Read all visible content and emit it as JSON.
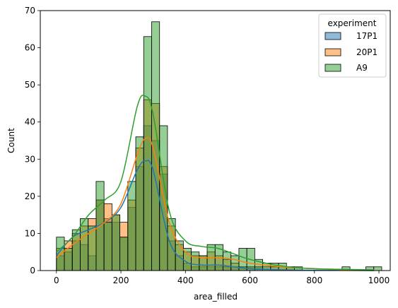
{
  "chart_data": {
    "type": "histogram",
    "xlabel": "area_filled",
    "ylabel": "Count",
    "xlim": [
      -50,
      1035
    ],
    "ylim": [
      0,
      70
    ],
    "xticks": [
      0,
      200,
      400,
      600,
      800,
      1000
    ],
    "yticks": [
      0,
      10,
      20,
      30,
      40,
      50,
      60,
      70
    ],
    "bin_start": 0,
    "bin_width": 24.6,
    "legend": {
      "title": "experiment",
      "position": "top-right"
    },
    "series": [
      {
        "name": "17P1",
        "color": "#1f77b4",
        "counts": [
          4,
          5,
          8,
          7,
          4,
          19,
          14,
          13,
          9,
          17,
          28,
          39,
          35,
          26,
          8,
          4,
          2,
          1,
          1,
          1,
          1,
          1,
          1,
          1,
          1,
          1,
          0,
          0,
          0,
          0,
          0,
          0,
          0,
          0,
          0,
          0,
          0,
          0,
          0,
          0,
          0
        ],
        "kde": [
          [
            0,
            4
          ],
          [
            50,
            9
          ],
          [
            100,
            11
          ],
          [
            150,
            13
          ],
          [
            200,
            17
          ],
          [
            250,
            27
          ],
          [
            275,
            29.5
          ],
          [
            300,
            27
          ],
          [
            350,
            8
          ],
          [
            400,
            2.5
          ],
          [
            450,
            1.5
          ],
          [
            500,
            1.5
          ],
          [
            550,
            1
          ],
          [
            600,
            0.5
          ],
          [
            700,
            0.2
          ],
          [
            800,
            0.1
          ],
          [
            985,
            0
          ]
        ]
      },
      {
        "name": "20P1",
        "color": "#ff7f0e",
        "counts": [
          6,
          8,
          10,
          12,
          14,
          19,
          18,
          15,
          13,
          19,
          33,
          46,
          45,
          28,
          12,
          7,
          5,
          4,
          4,
          5,
          4,
          3,
          2,
          1,
          1,
          1,
          1,
          1,
          1,
          1,
          0,
          0,
          0,
          0,
          0,
          0,
          0,
          0,
          0,
          0,
          0
        ],
        "kde": [
          [
            0,
            3.5
          ],
          [
            50,
            7
          ],
          [
            100,
            10
          ],
          [
            150,
            13
          ],
          [
            200,
            18
          ],
          [
            250,
            31
          ],
          [
            275,
            35.5
          ],
          [
            300,
            33
          ],
          [
            350,
            13
          ],
          [
            400,
            5
          ],
          [
            450,
            3.5
          ],
          [
            500,
            3.5
          ],
          [
            550,
            3
          ],
          [
            600,
            2
          ],
          [
            700,
            1
          ],
          [
            800,
            0.5
          ],
          [
            985,
            0
          ]
        ]
      },
      {
        "name": "A9",
        "color": "#2ca02c",
        "counts": [
          9,
          6,
          11,
          14,
          12,
          24,
          13,
          15,
          9,
          24,
          36,
          63,
          67,
          39,
          14,
          8,
          6,
          5,
          4,
          7,
          7,
          5,
          4,
          6,
          6,
          3,
          2,
          2,
          2,
          1,
          1,
          0,
          0,
          0,
          0,
          0,
          1,
          0,
          0,
          1,
          1
        ],
        "kde": [
          [
            0,
            5
          ],
          [
            50,
            9
          ],
          [
            100,
            15
          ],
          [
            150,
            19
          ],
          [
            200,
            24
          ],
          [
            250,
            44
          ],
          [
            275,
            47
          ],
          [
            300,
            42
          ],
          [
            350,
            16
          ],
          [
            400,
            8
          ],
          [
            450,
            6.5
          ],
          [
            500,
            6
          ],
          [
            550,
            4.5
          ],
          [
            600,
            3
          ],
          [
            700,
            1.2
          ],
          [
            800,
            0.5
          ],
          [
            985,
            0.2
          ]
        ]
      }
    ]
  }
}
